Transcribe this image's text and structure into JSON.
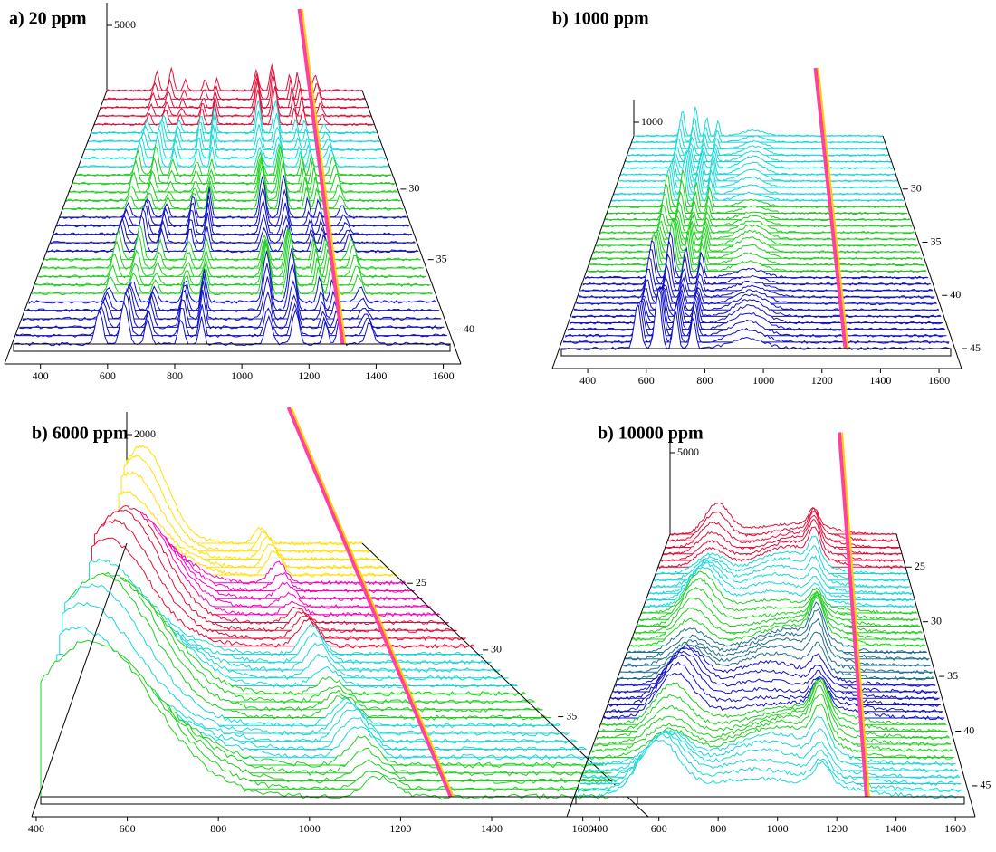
{
  "chart_data": [
    {
      "type": "waterfall",
      "title": "a) 20 ppm",
      "xlim": [
        320,
        1620
      ],
      "xticks": [
        400,
        600,
        800,
        1000,
        1200,
        1400,
        1600
      ],
      "ylim": [
        23,
        41
      ],
      "yticks": [
        30,
        35,
        40
      ],
      "zlim": [
        0,
        5000
      ],
      "zticks": [
        5000
      ],
      "peaks": {
        "x": [
          575,
          650,
          720,
          820,
          880,
          1080,
          1160,
          1250,
          1290,
          1380
        ],
        "z": [
          1500,
          2000,
          1200,
          1500,
          1800,
          2500,
          2800,
          1500,
          1500,
          1200
        ],
        "width": [
          15,
          15,
          12,
          12,
          10,
          15,
          15,
          10,
          10,
          15
        ]
      },
      "spike_x": 1300,
      "colors": [
        "#e0103a",
        "#18d8d8",
        "#20d020",
        "#1010c8",
        "#20d020",
        "#1010c8"
      ]
    },
    {
      "type": "waterfall",
      "title": "b) 1000 ppm",
      "xlim": [
        310,
        1640
      ],
      "xticks": [
        400,
        600,
        800,
        1000,
        1200,
        1400,
        1600
      ],
      "ylim": [
        25,
        45
      ],
      "yticks": [
        30,
        35,
        40,
        45
      ],
      "zlim": [
        0,
        4000
      ],
      "zticks": [
        1000
      ],
      "peaks": {
        "x": [
          570,
          640,
          700,
          760,
          950
        ],
        "z": [
          2000,
          2500,
          1800,
          1600,
          800
        ],
        "width": [
          15,
          15,
          12,
          12,
          80
        ]
      },
      "spike_x": 1280,
      "colors": [
        "#18d8d8",
        "#20d020",
        "#1010c8"
      ]
    },
    {
      "type": "waterfall",
      "title": "b) 6000 ppm",
      "xlim": [
        410,
        1720
      ],
      "xticks": [
        400,
        600,
        800,
        1000,
        1200,
        1400,
        1600
      ],
      "ylim": [
        22,
        41
      ],
      "yticks": [
        25,
        30,
        35,
        40
      ],
      "zlim": [
        0,
        2000
      ],
      "zticks": [
        2000
      ],
      "peaks": {
        "x": [
          500,
          1150
        ],
        "z": [
          1800,
          400
        ],
        "width": [
          220,
          50
        ]
      },
      "spike_x": 1310,
      "colors": [
        "#ffe000",
        "#ff00c0",
        "#e0103a",
        "#18d8d8",
        "#20d020",
        "#18d8d8",
        "#20d020"
      ]
    },
    {
      "type": "waterfall",
      "title": "b) 10000 ppm",
      "xlim": [
        320,
        1630
      ],
      "xticks": [
        400,
        600,
        800,
        1000,
        1200,
        1400,
        1600
      ],
      "ylim": [
        22,
        46
      ],
      "yticks": [
        25,
        30,
        35,
        40,
        45
      ],
      "zlim": [
        0,
        5000
      ],
      "zticks": [
        5000
      ],
      "peaks": {
        "x": [
          600,
          1000,
          1150
        ],
        "z": [
          2000,
          1200,
          1500
        ],
        "width": [
          100,
          250,
          40
        ]
      },
      "spike_x": 1300,
      "colors": [
        "#e0103a",
        "#18d8d8",
        "#20d020",
        "#1f6f8f",
        "#1010c8",
        "#20d020",
        "#18d8d8"
      ]
    }
  ]
}
